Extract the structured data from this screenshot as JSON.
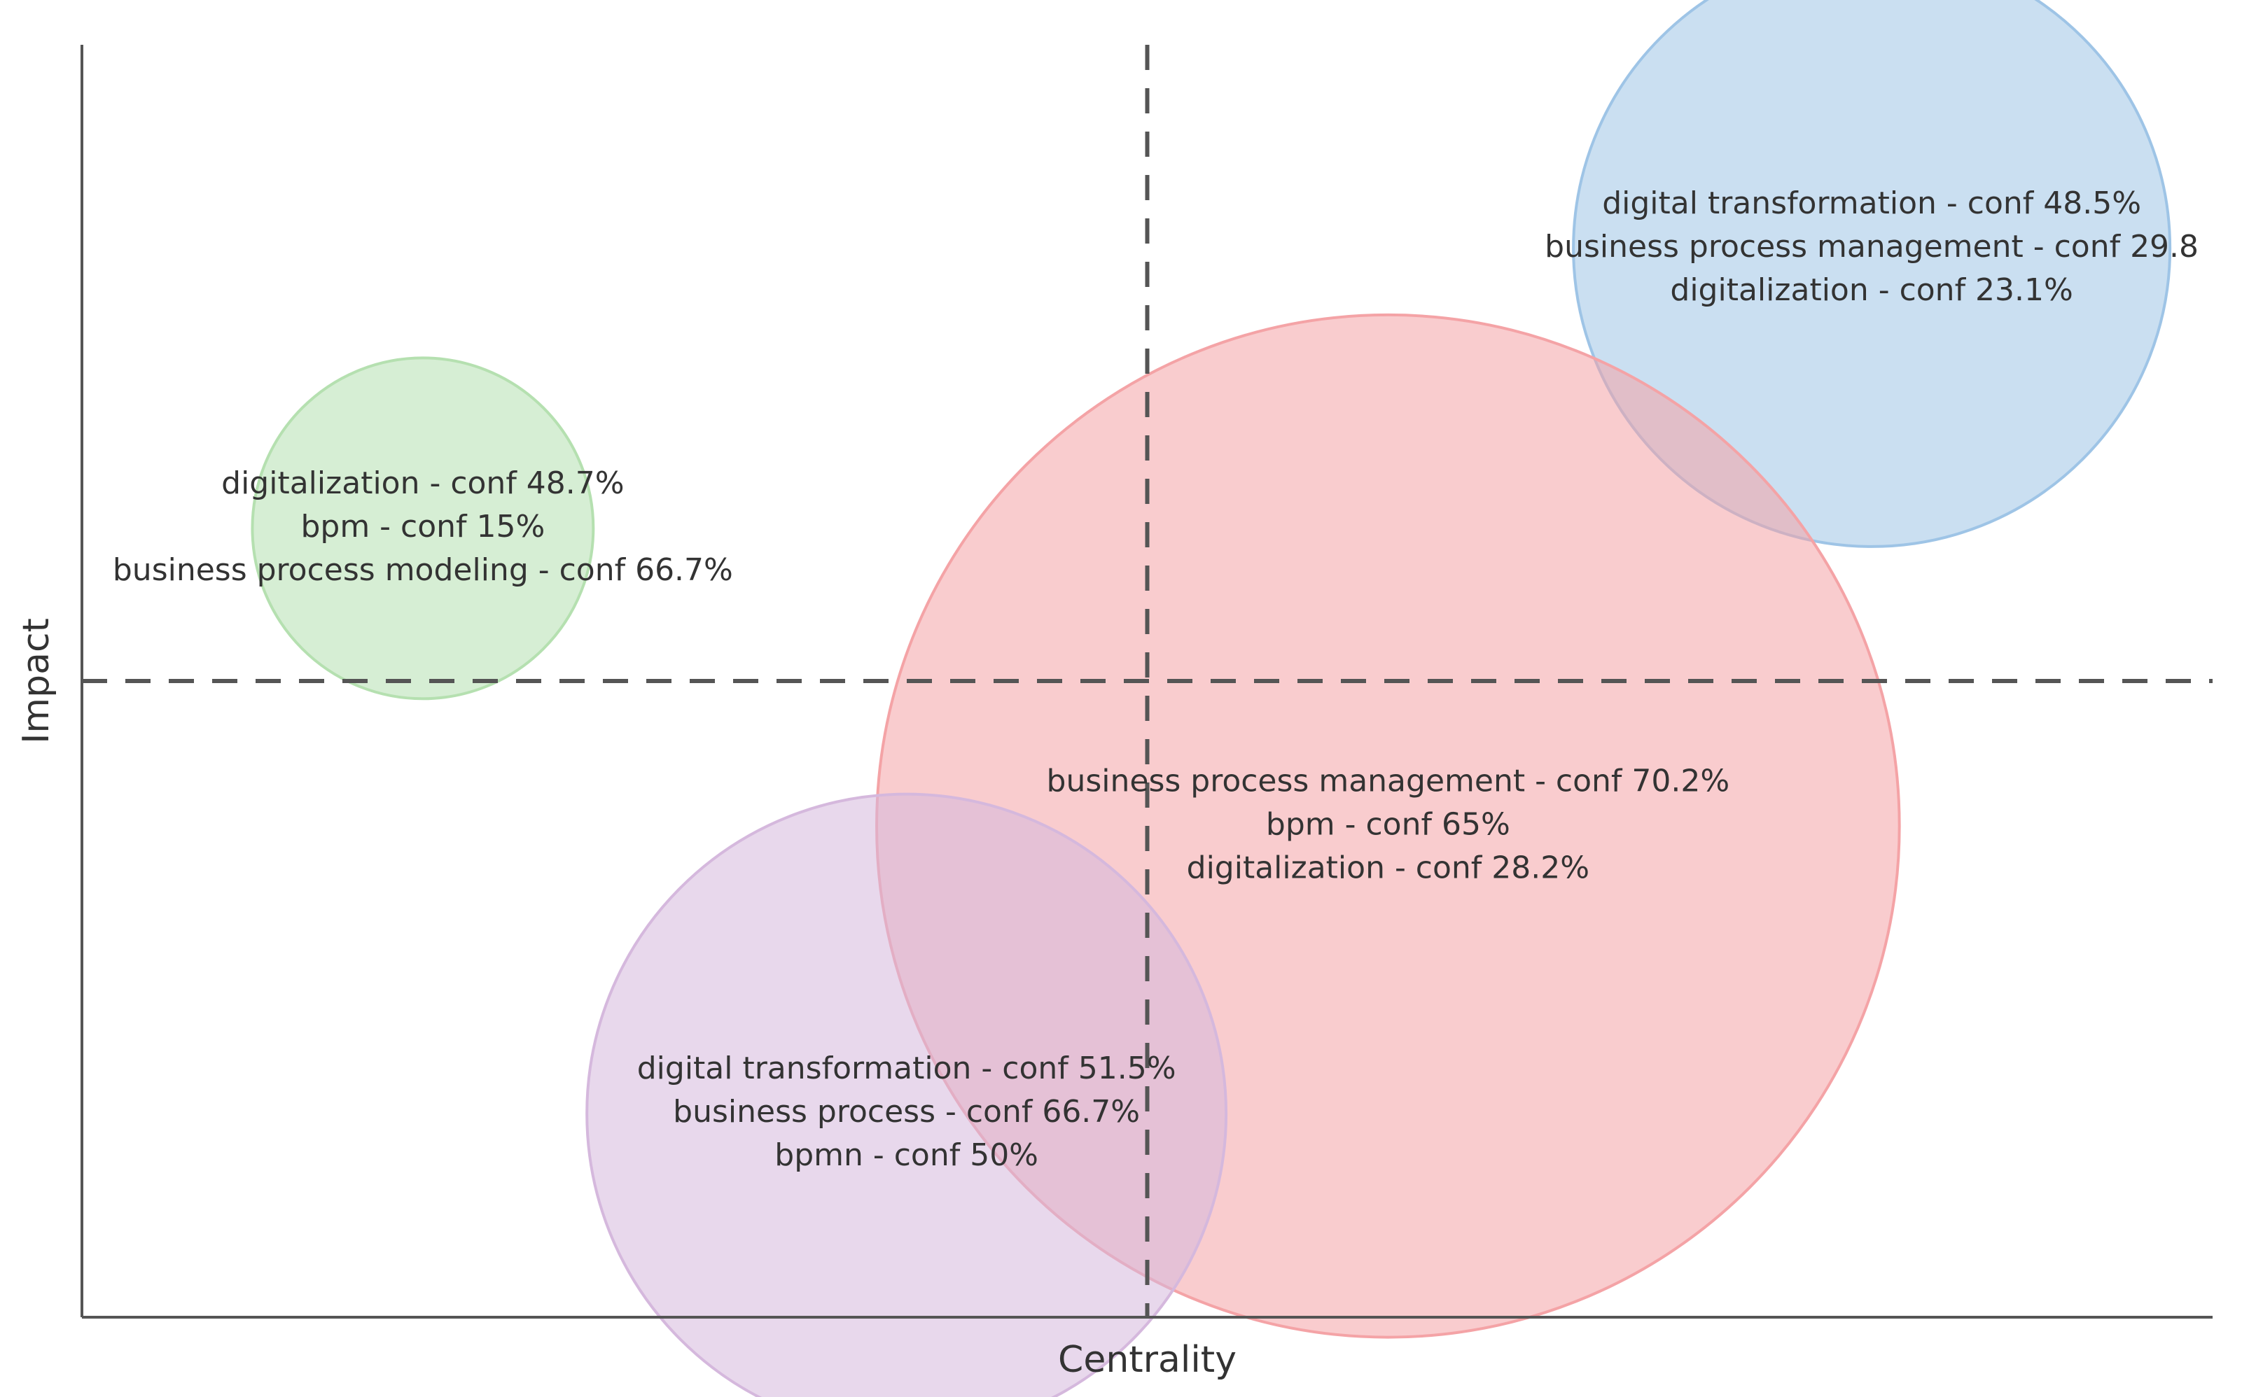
{
  "chart_data": {
    "type": "scatter",
    "subtype": "bubble",
    "title": "",
    "xlabel": "Centrality",
    "ylabel": "Impact",
    "xlim": [
      0,
      100
    ],
    "ylim": [
      0,
      100
    ],
    "grid": false,
    "reference_lines": {
      "x": 50,
      "y": 50
    },
    "points": [
      {
        "name": "cluster-blue",
        "x": 84,
        "y": 84,
        "size": 14,
        "color": "#9ec4e6",
        "labels": [
          "digital transformation - conf 48.5%",
          "business process management - conf 29.8",
          "digitalization - conf 23.1%"
        ]
      },
      {
        "name": "cluster-green",
        "x": 16,
        "y": 62,
        "size": 8,
        "color": "#b5e0b0",
        "labels": [
          "digitalization - conf 48.7%",
          "bpm - conf 15%",
          "business process modeling - conf 66.7%"
        ]
      },
      {
        "name": "cluster-red",
        "x": 61.3,
        "y": 38.6,
        "size": 24,
        "color": "#f4a3a6",
        "labels": [
          "business process management - conf 70.2%",
          "bpm - conf 65%",
          "digitalization - conf 28.2%"
        ]
      },
      {
        "name": "cluster-purple",
        "x": 38.7,
        "y": 16,
        "size": 15,
        "color": "#d5b8dd",
        "labels": [
          "digital transformation - conf 51.5%",
          "business process - conf 66.7%",
          "bpmn - conf 50%"
        ]
      }
    ]
  }
}
